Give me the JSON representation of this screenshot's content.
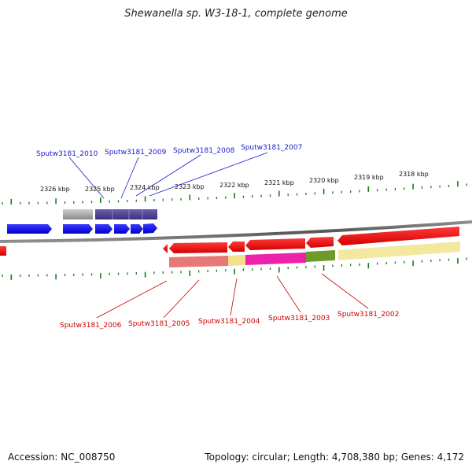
{
  "title": "Shewanella sp. W3-18-1, complete genome",
  "footer": {
    "accession": "Accession: NC_008750",
    "topology": "Topology: circular; Length: 4,708,380 bp; Genes: 4,172"
  },
  "scale_labels": [
    "2326 kbp",
    "2325 kbp",
    "2324 kbp",
    "2323 kbp",
    "2322 kbp",
    "2321 kbp",
    "2320 kbp",
    "2319 kbp",
    "2318 kbp"
  ],
  "colors": {
    "forward_gene": "#0000ee",
    "forward_gene_group": "#4a3f8c",
    "reverse_gene": "#ee0000",
    "forward_label": "#1a1acc",
    "reverse_label": "#cc0000",
    "tick": "#1a7a1a",
    "backbone": "#777777"
  },
  "gene_labels": {
    "forward": [
      "Sputw3181_2010",
      "Sputw3181_2009",
      "Sputw3181_2008",
      "Sputw3181_2007"
    ],
    "reverse": [
      "Sputw3181_2006",
      "Sputw3181_2005",
      "Sputw3181_2004",
      "Sputw3181_2003",
      "Sputw3181_2002"
    ]
  },
  "annotation_colors": {
    "reverse": [
      "#e87878",
      "#f2e08c",
      "#ee22aa",
      "#6e9a2a",
      "#f2e8a0"
    ]
  }
}
